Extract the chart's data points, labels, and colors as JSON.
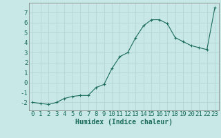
{
  "x": [
    0,
    1,
    2,
    3,
    4,
    5,
    6,
    7,
    8,
    9,
    10,
    11,
    12,
    13,
    14,
    15,
    16,
    17,
    18,
    19,
    20,
    21,
    22,
    23
  ],
  "y": [
    -2.0,
    -2.1,
    -2.2,
    -2.0,
    -1.6,
    -1.4,
    -1.3,
    -1.3,
    -0.5,
    -0.2,
    1.4,
    2.6,
    3.0,
    4.5,
    5.7,
    6.3,
    6.3,
    5.9,
    4.5,
    4.1,
    3.7,
    3.5,
    3.3,
    7.5
  ],
  "line_color": "#1a6b5a",
  "marker": "+",
  "marker_size": 3,
  "bg_color": "#c8e8e8",
  "grid_color": "#b8d4d4",
  "axis_color": "#888888",
  "tick_label_color": "#1a6b5a",
  "xlabel": "Humidex (Indice chaleur)",
  "xlim": [
    -0.5,
    23.5
  ],
  "ylim": [
    -2.8,
    8.0
  ],
  "yticks": [
    -2,
    -1,
    0,
    1,
    2,
    3,
    4,
    5,
    6,
    7
  ],
  "xticks": [
    0,
    1,
    2,
    3,
    4,
    5,
    6,
    7,
    8,
    9,
    10,
    11,
    12,
    13,
    14,
    15,
    16,
    17,
    18,
    19,
    20,
    21,
    22,
    23
  ],
  "xlabel_fontsize": 7,
  "tick_fontsize": 6.5
}
